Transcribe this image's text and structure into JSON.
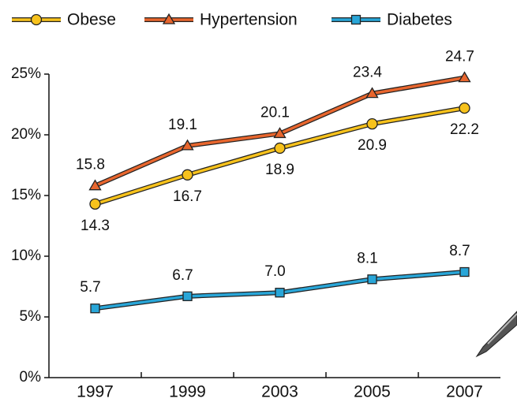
{
  "chart_data": {
    "type": "line",
    "categories": [
      "1997",
      "1999",
      "2003",
      "2005",
      "2007"
    ],
    "series": [
      {
        "name": "Obese",
        "color": "#f7c21c",
        "marker": "circle",
        "values": [
          14.3,
          16.7,
          18.9,
          20.9,
          22.2
        ]
      },
      {
        "name": "Hypertension",
        "color": "#e8662e",
        "marker": "triangle",
        "values": [
          15.8,
          19.1,
          20.1,
          23.4,
          24.7
        ]
      },
      {
        "name": "Diabetes",
        "color": "#29a6d8",
        "marker": "square",
        "values": [
          5.7,
          6.7,
          7.0,
          8.1,
          8.7
        ],
        "value_labels": [
          "5.7",
          "6.7",
          "7.0",
          "8.1",
          "8.7"
        ]
      }
    ],
    "ylim": [
      0,
      25
    ],
    "yticks": [
      {
        "value": 0,
        "label": "0%"
      },
      {
        "value": 5,
        "label": "5%"
      },
      {
        "value": 10,
        "label": "10%"
      },
      {
        "value": 15,
        "label": "15%"
      },
      {
        "value": 20,
        "label": "20%"
      },
      {
        "value": 25,
        "label": "25%"
      }
    ]
  }
}
